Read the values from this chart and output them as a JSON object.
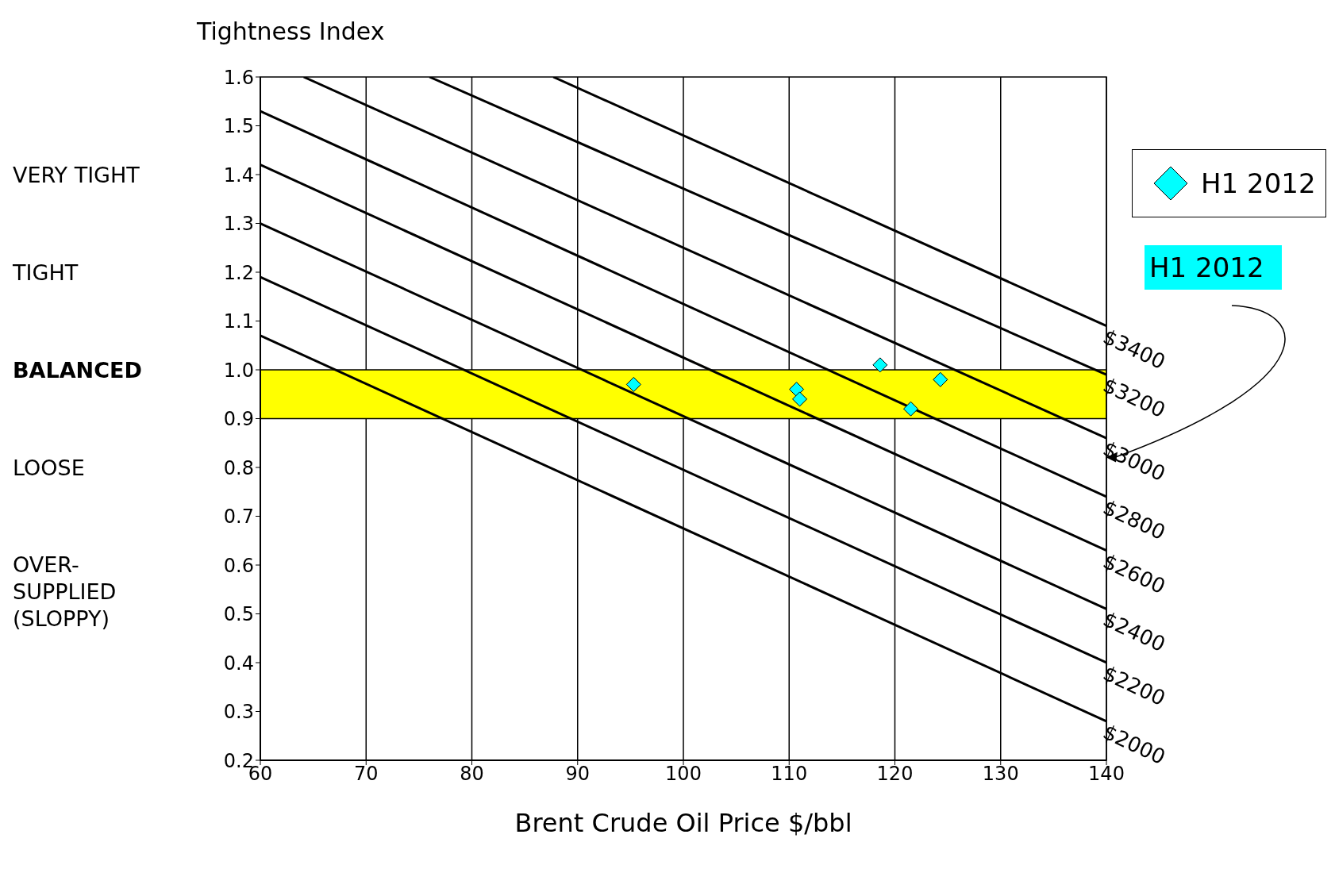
{
  "chart_data": {
    "type": "scatter",
    "ylabel": "Tightness Index",
    "xlabel": "Brent Crude Oil Price $/bbl",
    "xlim": [
      60,
      140
    ],
    "xticks": [
      60,
      70,
      80,
      90,
      100,
      110,
      120,
      130,
      140
    ],
    "ylim": [
      0.2,
      1.6
    ],
    "yticks": [
      0.2,
      0.3,
      0.4,
      0.5,
      0.6,
      0.7,
      0.8,
      0.9,
      {
        "value": 1.0,
        "label": "1.0"
      },
      1.1,
      1.2,
      1.3,
      1.4,
      1.5,
      1.6
    ],
    "grid": "x",
    "legend": "top right",
    "bands": [
      {
        "axis": "y",
        "from": 0.9,
        "to": 1.0,
        "color": "#ffff00"
      }
    ],
    "series": [
      {
        "name": "H1 2012",
        "marker": "diamond",
        "color": "#00ffff",
        "x": [
          95.3,
          110.7,
          111.0,
          118.6,
          121.5,
          124.3
        ],
        "values": [
          0.97,
          0.96,
          0.94,
          1.01,
          0.92,
          0.98
        ]
      },
      {
        "name": "$2000",
        "type": "line",
        "color": "#000000",
        "x": [
          60,
          140
        ],
        "values": [
          1.07,
          0.28
        ]
      },
      {
        "name": "$2200",
        "type": "line",
        "color": "#000000",
        "x": [
          60,
          140
        ],
        "values": [
          1.19,
          0.4
        ]
      },
      {
        "name": "$2400",
        "type": "line",
        "color": "#000000",
        "x": [
          60,
          140
        ],
        "values": [
          1.3,
          0.51
        ]
      },
      {
        "name": "$2600",
        "type": "line",
        "color": "#000000",
        "x": [
          60,
          140
        ],
        "values": [
          1.42,
          0.63
        ]
      },
      {
        "name": "$2800",
        "type": "line",
        "color": "#000000",
        "x": [
          60,
          140
        ],
        "values": [
          1.53,
          0.74
        ]
      },
      {
        "name": "$3000",
        "type": "line",
        "color": "#000000",
        "x": [
          64.1,
          140
        ],
        "values": [
          1.6,
          0.86
        ]
      },
      {
        "name": "$3200",
        "type": "line",
        "color": "#000000",
        "x": [
          76,
          140
        ],
        "values": [
          1.6,
          0.99
        ]
      },
      {
        "name": "$3400",
        "type": "line",
        "color": "#000000",
        "x": [
          87.7,
          140
        ],
        "values": [
          1.6,
          1.09
        ]
      }
    ],
    "annotations": [
      "VERY TIGHT",
      "TIGHT",
      "BALANCED",
      "LOOSE",
      "OVER-\nSUPPLIED\n(SLOPPY)",
      "H1 2012"
    ]
  }
}
